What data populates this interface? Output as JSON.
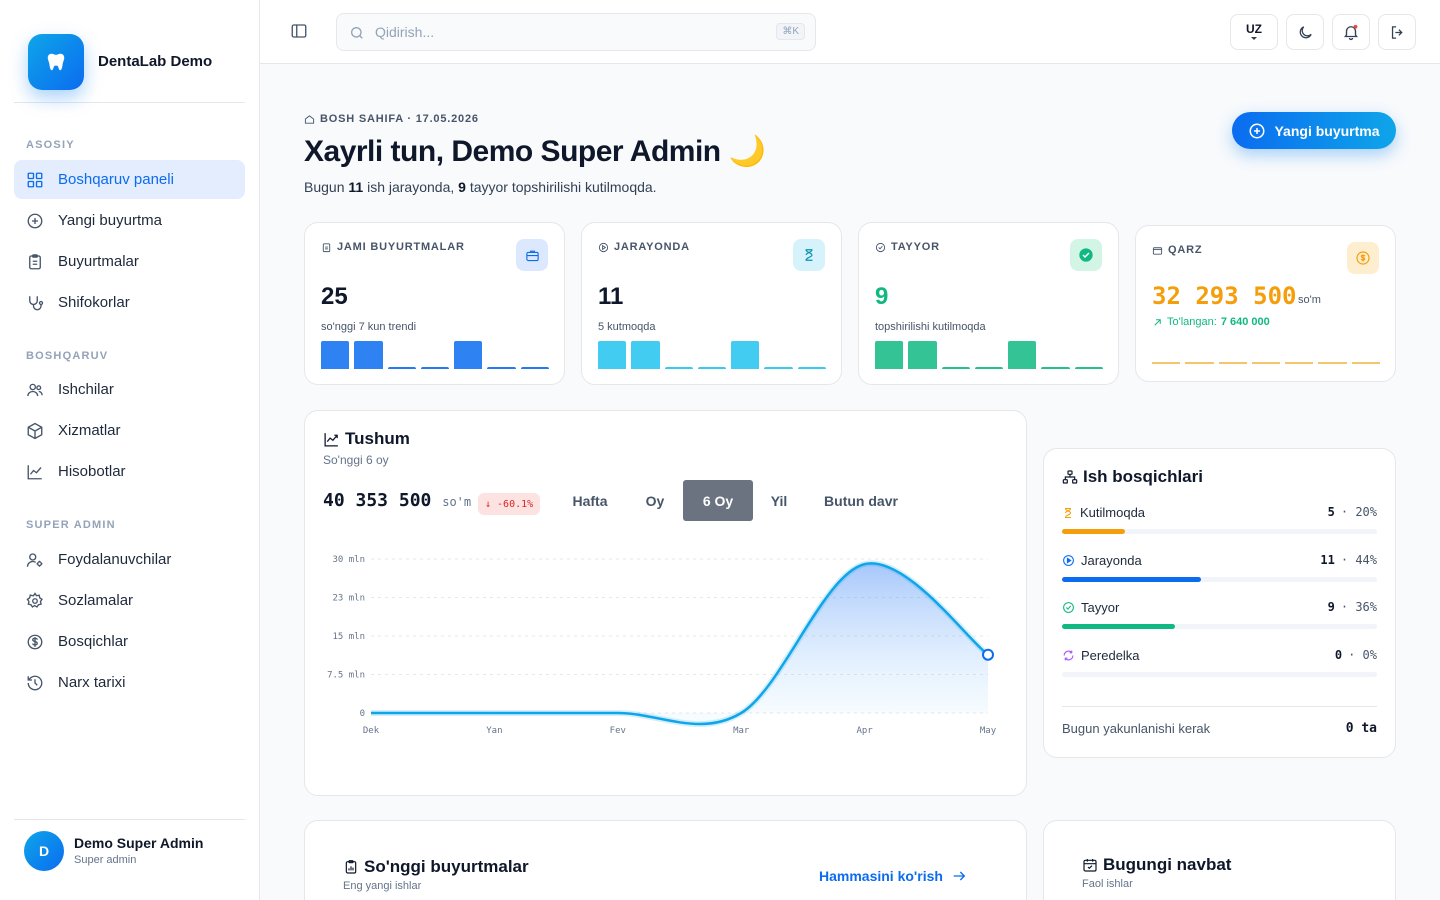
{
  "app": {
    "name": "DentaLab Demo"
  },
  "sidebar": {
    "sections": [
      {
        "title": "ASOSIY",
        "items": [
          {
            "label": "Boshqaruv paneli",
            "icon": "dashboard-icon",
            "active": true
          },
          {
            "label": "Yangi buyurtma",
            "icon": "plus-circle-icon"
          },
          {
            "label": "Buyurtmalar",
            "icon": "clipboard-icon"
          },
          {
            "label": "Shifokorlar",
            "icon": "stethoscope-icon"
          }
        ]
      },
      {
        "title": "BOSHQARUV",
        "items": [
          {
            "label": "Ishchilar",
            "icon": "users-icon"
          },
          {
            "label": "Xizmatlar",
            "icon": "box-icon"
          },
          {
            "label": "Hisobotlar",
            "icon": "chart-line-icon"
          }
        ]
      },
      {
        "title": "SUPER ADMIN",
        "items": [
          {
            "label": "Foydalanuvchilar",
            "icon": "user-cog-icon"
          },
          {
            "label": "Sozlamalar",
            "icon": "gear-icon"
          },
          {
            "label": "Bosqichlar",
            "icon": "dollar-circle-icon"
          },
          {
            "label": "Narx tarixi",
            "icon": "history-icon"
          }
        ]
      }
    ],
    "user": {
      "initial": "D",
      "name": "Demo Super Admin",
      "role": "Super admin"
    }
  },
  "topbar": {
    "search_placeholder": "Qidirish...",
    "shortcut": "⌘K",
    "language": "UZ"
  },
  "header": {
    "breadcrumb": "BOSH SAHIFA · 17.05.2026",
    "greeting": "Xayrli tun, Demo Super Admin 🌙",
    "summary_prefix": "Bugun",
    "summary_in_progress": "11",
    "summary_middle": "ish jarayonda,",
    "summary_ready": "9",
    "summary_suffix": "tayyor topshirilishi kutilmoqda.",
    "cta_label": "Yangi buyurtma"
  },
  "stats": [
    {
      "label": "JAMI BUYURTMALAR",
      "value": "25",
      "sub": "so'nggi 7 kun trendi",
      "color": "#0b6cf0",
      "icon": "briefcase-icon",
      "bars": [
        1,
        1,
        0,
        0,
        1,
        0,
        0
      ]
    },
    {
      "label": "JARAYONDA",
      "value": "11",
      "sub": "5 kutmoqda",
      "color": "#22c3ee",
      "icon": "hourglass-icon",
      "bars": [
        1,
        1,
        0,
        0,
        1,
        0,
        0
      ]
    },
    {
      "label": "TAYYOR",
      "value": "9",
      "sub": "topshirilishi kutilmoqda",
      "color": "#10b981",
      "icon": "check-circle-icon",
      "bars": [
        1,
        1,
        0,
        0,
        1,
        0,
        0
      ]
    },
    {
      "label": "QARZ",
      "value": "32 293 500",
      "unit": "so'm",
      "paid_label": "To'langan:",
      "paid_value": "7 640 000",
      "color": "#f59e0b",
      "icon": "coin-icon"
    }
  ],
  "revenue": {
    "title": "Tushum",
    "subtitle": "So'nggi 6 oy",
    "total": "40 353 500",
    "unit": "so'm",
    "delta": "↓ -60.1%",
    "ranges": [
      "Hafta",
      "Oy",
      "6 Oy",
      "Yil",
      "Butun davr"
    ],
    "active_range": "6 Oy"
  },
  "chart_data": {
    "type": "area",
    "x": [
      "Dek",
      "Yan",
      "Fev",
      "Mar",
      "Apr",
      "May"
    ],
    "y_ticks": [
      "30 mln",
      "23 mln",
      "15 mln",
      "7.5 mln",
      "0"
    ],
    "ylim": [
      0,
      30000000
    ],
    "values": [
      0,
      0,
      0,
      0,
      29000000,
      11353500
    ],
    "grid": true,
    "color": "#0ea5e9"
  },
  "stages": {
    "title": "Ish bosqichlari",
    "items": [
      {
        "name": "Kutilmoqda",
        "count": "5",
        "percent": "20%",
        "fraction": 0.2,
        "color": "#f59e0b",
        "icon": "hourglass-icon"
      },
      {
        "name": "Jarayonda",
        "count": "11",
        "percent": "44%",
        "fraction": 0.44,
        "color": "#0b6cf0",
        "icon": "play-circle-icon"
      },
      {
        "name": "Tayyor",
        "count": "9",
        "percent": "36%",
        "fraction": 0.36,
        "color": "#10b981",
        "icon": "check-circle-icon"
      },
      {
        "name": "Peredelka",
        "count": "0",
        "percent": "0%",
        "fraction": 0,
        "color": "#a855f7",
        "icon": "refresh-icon"
      }
    ],
    "footer_label": "Bugun yakunlanishi kerak",
    "footer_value": "0 ta"
  },
  "recent_orders": {
    "title": "So'nggi buyurtmalar",
    "subtitle": "Eng yangi ishlar",
    "link": "Hammasini ko'rish"
  },
  "today_queue": {
    "title": "Bugungi navbat",
    "subtitle": "Faol ishlar"
  }
}
